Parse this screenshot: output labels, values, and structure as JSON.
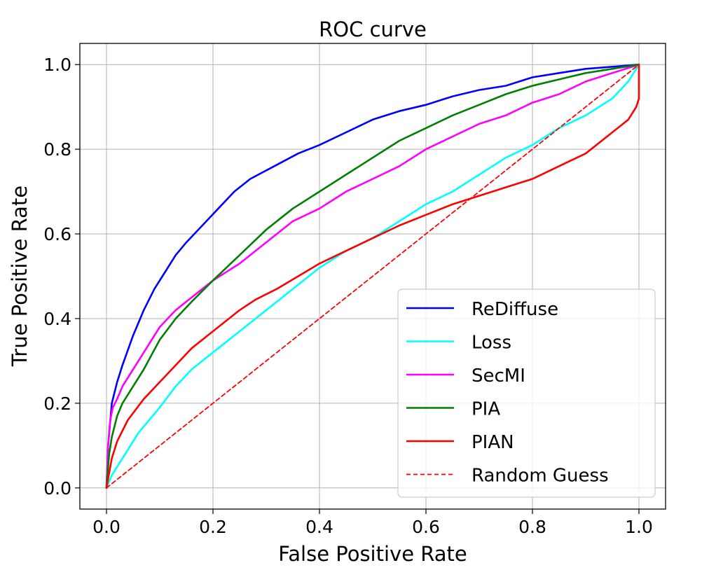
{
  "chart_data": {
    "type": "line",
    "title": "ROC curve",
    "xlabel": "False Positive Rate",
    "ylabel": "True Positive Rate",
    "xlim": [
      -0.05,
      1.05
    ],
    "ylim": [
      -0.05,
      1.05
    ],
    "grid": true,
    "legend_position": "lower-right",
    "xticks": [
      0.0,
      0.2,
      0.4,
      0.6,
      0.8,
      1.0
    ],
    "yticks": [
      0.0,
      0.2,
      0.4,
      0.6,
      0.8,
      1.0
    ],
    "xtick_labels": [
      "0.0",
      "0.2",
      "0.4",
      "0.6",
      "0.8",
      "1.0"
    ],
    "ytick_labels": [
      "0.0",
      "0.2",
      "0.4",
      "0.6",
      "0.8",
      "1.0"
    ],
    "series": [
      {
        "name": "ReDiffuse",
        "color": "#0000ff",
        "dash": "solid",
        "x": [
          0,
          0.003,
          0.01,
          0.02,
          0.03,
          0.05,
          0.07,
          0.09,
          0.11,
          0.13,
          0.15,
          0.18,
          0.21,
          0.24,
          0.27,
          0.3,
          0.33,
          0.36,
          0.4,
          0.45,
          0.5,
          0.55,
          0.6,
          0.65,
          0.7,
          0.75,
          0.8,
          0.85,
          0.9,
          0.95,
          1.0
        ],
        "y": [
          0,
          0.1,
          0.2,
          0.25,
          0.29,
          0.36,
          0.42,
          0.47,
          0.51,
          0.55,
          0.58,
          0.62,
          0.66,
          0.7,
          0.73,
          0.75,
          0.77,
          0.79,
          0.81,
          0.84,
          0.87,
          0.89,
          0.905,
          0.925,
          0.94,
          0.95,
          0.97,
          0.98,
          0.99,
          0.995,
          1.0
        ]
      },
      {
        "name": "Loss",
        "color": "#00ffff",
        "dash": "solid",
        "x": [
          0,
          0.01,
          0.02,
          0.04,
          0.06,
          0.08,
          0.1,
          0.13,
          0.16,
          0.2,
          0.25,
          0.3,
          0.35,
          0.4,
          0.45,
          0.5,
          0.55,
          0.6,
          0.65,
          0.7,
          0.75,
          0.8,
          0.85,
          0.9,
          0.95,
          0.98,
          1.0
        ],
        "y": [
          0,
          0.03,
          0.05,
          0.09,
          0.13,
          0.16,
          0.19,
          0.24,
          0.28,
          0.32,
          0.37,
          0.42,
          0.47,
          0.52,
          0.56,
          0.59,
          0.63,
          0.67,
          0.7,
          0.74,
          0.78,
          0.81,
          0.85,
          0.88,
          0.92,
          0.96,
          1.0
        ]
      },
      {
        "name": "SecMI",
        "color": "#ff00ff",
        "dash": "solid",
        "x": [
          0,
          0.003,
          0.007,
          0.012,
          0.02,
          0.03,
          0.05,
          0.07,
          0.1,
          0.13,
          0.16,
          0.2,
          0.25,
          0.3,
          0.35,
          0.4,
          0.45,
          0.5,
          0.55,
          0.6,
          0.65,
          0.7,
          0.75,
          0.8,
          0.85,
          0.9,
          0.95,
          1.0
        ],
        "y": [
          0,
          0.1,
          0.16,
          0.19,
          0.21,
          0.24,
          0.28,
          0.32,
          0.38,
          0.42,
          0.45,
          0.49,
          0.53,
          0.58,
          0.63,
          0.66,
          0.7,
          0.73,
          0.76,
          0.8,
          0.83,
          0.86,
          0.88,
          0.91,
          0.93,
          0.96,
          0.98,
          1.0
        ]
      },
      {
        "name": "PIA",
        "color": "#008000",
        "dash": "solid",
        "x": [
          0,
          0.005,
          0.01,
          0.02,
          0.03,
          0.05,
          0.07,
          0.1,
          0.13,
          0.16,
          0.2,
          0.25,
          0.3,
          0.35,
          0.4,
          0.45,
          0.5,
          0.55,
          0.6,
          0.65,
          0.7,
          0.75,
          0.8,
          0.85,
          0.9,
          0.95,
          1.0
        ],
        "y": [
          0,
          0.08,
          0.12,
          0.17,
          0.2,
          0.24,
          0.28,
          0.35,
          0.4,
          0.44,
          0.49,
          0.55,
          0.61,
          0.66,
          0.7,
          0.74,
          0.78,
          0.82,
          0.85,
          0.88,
          0.905,
          0.93,
          0.95,
          0.965,
          0.98,
          0.99,
          1.0
        ]
      },
      {
        "name": "PIAN",
        "color": "#ff0000",
        "dash": "solid",
        "x": [
          0,
          0.01,
          0.02,
          0.04,
          0.07,
          0.1,
          0.13,
          0.16,
          0.19,
          0.22,
          0.25,
          0.28,
          0.32,
          0.36,
          0.4,
          0.45,
          0.5,
          0.55,
          0.6,
          0.65,
          0.7,
          0.75,
          0.8,
          0.85,
          0.9,
          0.95,
          0.98,
          0.995,
          1.0,
          1.0
        ],
        "y": [
          0,
          0.07,
          0.11,
          0.16,
          0.21,
          0.25,
          0.29,
          0.33,
          0.36,
          0.39,
          0.42,
          0.445,
          0.47,
          0.5,
          0.53,
          0.56,
          0.59,
          0.62,
          0.645,
          0.67,
          0.69,
          0.71,
          0.73,
          0.76,
          0.79,
          0.84,
          0.87,
          0.9,
          0.92,
          1.0
        ]
      },
      {
        "name": "Random Guess",
        "color": "#ff0000",
        "dash": "dashed",
        "x": [
          0,
          1
        ],
        "y": [
          0,
          1
        ]
      }
    ]
  }
}
